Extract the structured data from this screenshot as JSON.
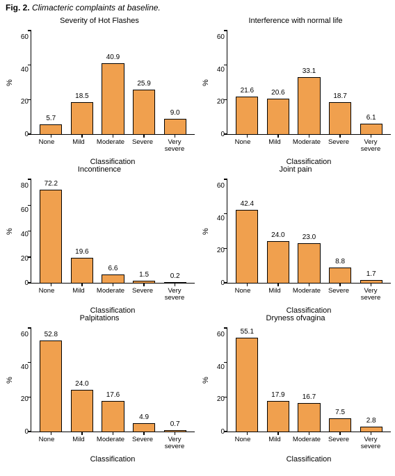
{
  "caption_prefix": "Fig. 2.",
  "caption_text": " Climacteric complaints at baseline.",
  "global": {
    "categories": [
      "None",
      "Mild",
      "Moderate",
      "Severe",
      "Very\nsevere"
    ],
    "xlabel": "Classification",
    "ylabel": "%",
    "bar_fill": "#f0a04e",
    "bar_border": "#000000",
    "axis_color": "#000000",
    "bg": "#ffffff",
    "label_fontsize": 11,
    "tick_fontsize": 10,
    "title_fontsize": 11,
    "bar_width_ratio": 0.72
  },
  "charts": [
    {
      "title": "Severity of Hot Flashes",
      "values": [
        5.7,
        18.5,
        40.9,
        25.9,
        9.0
      ],
      "value_labels": [
        "5.7",
        "18.5",
        "40.9",
        "25.9",
        "9.0"
      ],
      "ymax": 60,
      "ytick_step": 20
    },
    {
      "title": "Interference with normal life",
      "values": [
        21.6,
        20.6,
        33.1,
        18.7,
        6.1
      ],
      "value_labels": [
        "21.6",
        "20.6",
        "33.1",
        "18.7",
        "6.1"
      ],
      "ymax": 60,
      "ytick_step": 20
    },
    {
      "title": "Incontinence",
      "values": [
        72.2,
        19.6,
        6.6,
        1.5,
        0.2
      ],
      "value_labels": [
        "72.2",
        "19.6",
        "6.6",
        "1.5",
        "0.2"
      ],
      "ymax": 80,
      "ytick_step": 20
    },
    {
      "title": "Joint pain",
      "values": [
        42.4,
        24.0,
        23.0,
        8.8,
        1.7
      ],
      "value_labels": [
        "42.4",
        "24.0",
        "23.0",
        "8.8",
        "1.7"
      ],
      "ymax": 60,
      "ytick_step": 20
    },
    {
      "title": "Palpitations",
      "values": [
        52.8,
        24.0,
        17.6,
        4.9,
        0.7
      ],
      "value_labels": [
        "52.8",
        "24.0",
        "17.6",
        "4.9",
        "0.7"
      ],
      "ymax": 60,
      "ytick_step": 20
    },
    {
      "title": "Dryness ofvagina",
      "values": [
        55.1,
        17.9,
        16.7,
        7.5,
        2.8
      ],
      "value_labels": [
        "55.1",
        "17.9",
        "16.7",
        "7.5",
        "2.8"
      ],
      "ymax": 60,
      "ytick_step": 20
    }
  ]
}
